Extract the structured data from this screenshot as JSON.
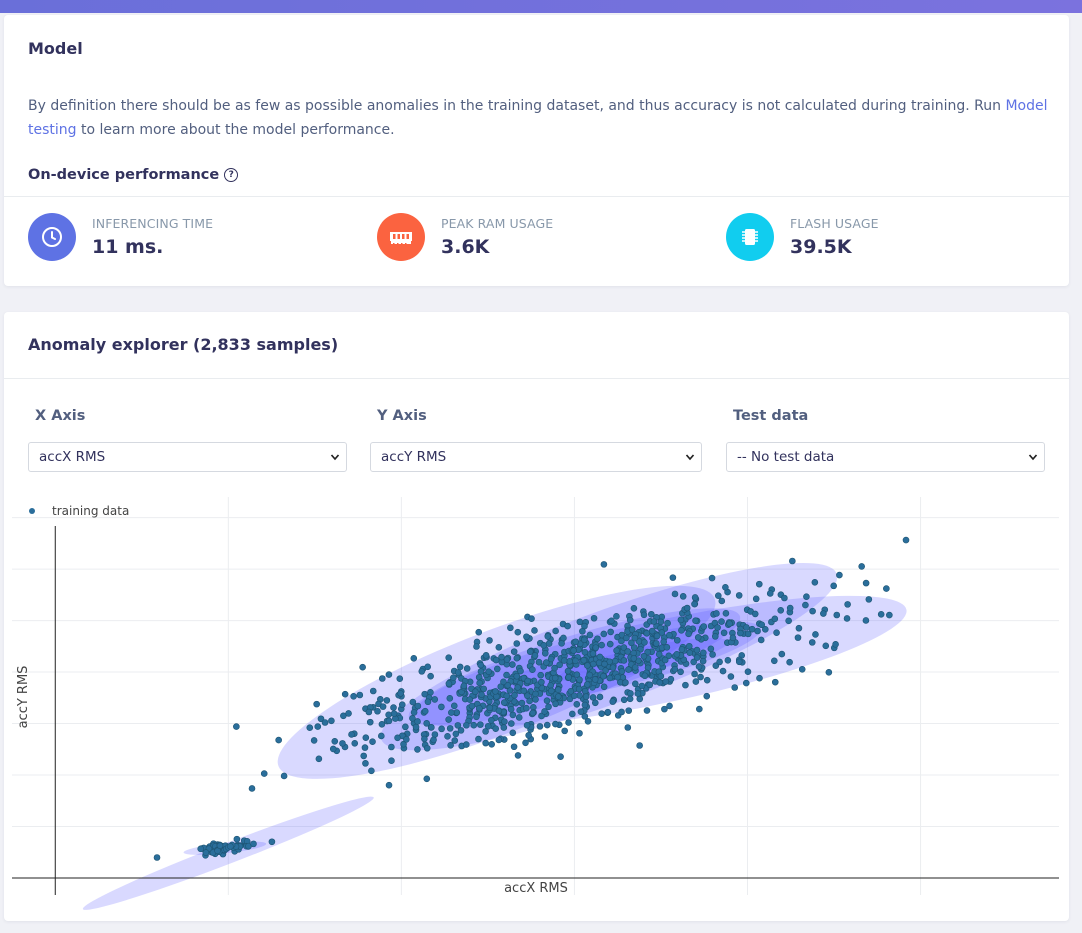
{
  "model": {
    "title": "Model",
    "description_pre": "By definition there should be as few as possible anomalies in the training dataset, and thus accuracy is not calculated during training. Run ",
    "description_link": "Model testing",
    "description_post": " to learn more about the model performance.",
    "perf_heading": "On-device performance",
    "stats": [
      {
        "label": "INFERENCING TIME",
        "value": "11 ms.",
        "icon": "clock-icon",
        "color": "#5e72e4"
      },
      {
        "label": "PEAK RAM USAGE",
        "value": "3.6K",
        "icon": "memory-icon",
        "color": "#fb6340"
      },
      {
        "label": "FLASH USAGE",
        "value": "39.5K",
        "icon": "chip-icon",
        "color": "#11cdef"
      }
    ]
  },
  "anomaly": {
    "title": "Anomaly explorer (2,833 samples)",
    "x_axis_label": "X Axis",
    "x_axis_value": "accX RMS",
    "y_axis_label": "Y Axis",
    "y_axis_value": "accY RMS",
    "test_label": "Test data",
    "test_value": "-- No test data"
  },
  "chart_data": {
    "type": "scatter",
    "xlabel": "accX RMS",
    "ylabel": "accY RMS",
    "series": [
      {
        "name": "training data",
        "color": "#2a6e9b"
      }
    ],
    "clusters": [
      {
        "center": [
          0.98,
          0.29
        ],
        "spread": [
          0.1,
          0.025
        ],
        "tilt": -8,
        "count": 60,
        "ellipses": [
          [
            1.0,
            0.24,
            0.9,
            0.1,
            -21
          ],
          [
            0.98,
            0.29,
            0.24,
            0.05,
            -6
          ]
        ]
      },
      {
        "center": [
          3.0,
          2.0
        ],
        "spread": [
          0.7,
          0.25
        ],
        "tilt": -15,
        "count": 900,
        "ellipses": [
          [
            2.55,
            1.9,
            1.35,
            0.5,
            -21
          ],
          [
            3.5,
            2.1,
            1.45,
            0.4,
            -12
          ],
          [
            3.2,
            2.15,
            1.4,
            0.45,
            -20
          ],
          [
            3.0,
            2.05,
            1.0,
            0.3,
            -17
          ],
          [
            3.3,
            2.1,
            0.8,
            0.22,
            -14
          ],
          [
            3.4,
            2.12,
            0.5,
            0.12,
            -12
          ]
        ]
      }
    ],
    "xlim": [
      -0.25,
      5.8
    ],
    "ylim": [
      0.0,
      3.7
    ]
  }
}
